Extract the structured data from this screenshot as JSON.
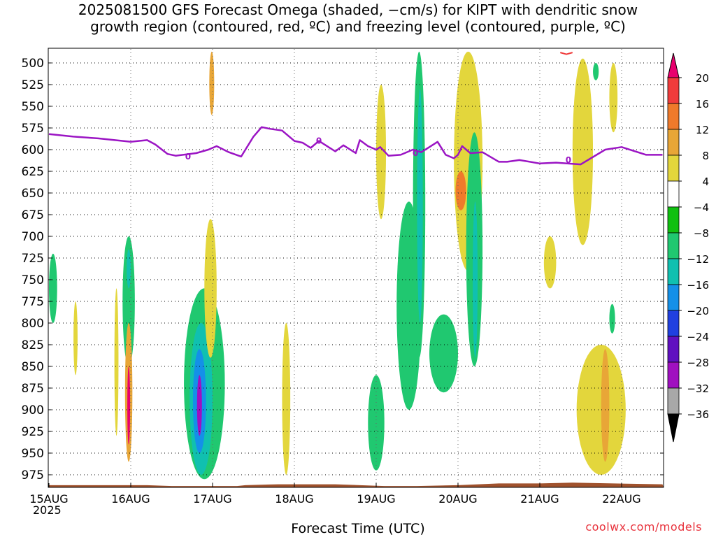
{
  "title_line1": "2025081500 GFS Forecast Omega (shaded, −cm/s) for KIPT with dendritic snow",
  "title_line2": "growth region (contoured, red, ºC) and freezing level (contoured, purple, ºC)",
  "credit": "coolwx.com/models",
  "chart_data": {
    "type": "heatmap",
    "title": "2025081500 GFS Forecast Omega (shaded, −cm/s) for KIPT with dendritic snow growth region (contoured, red, ºC) and freezing level (contoured, purple, ºC)",
    "xlabel": "Forecast Time (UTC)",
    "x_year_label": "2025",
    "x_ticks": [
      "15AUG",
      "16AUG",
      "17AUG",
      "18AUG",
      "19AUG",
      "20AUG",
      "21AUG",
      "22AUG"
    ],
    "x_range_days": [
      0,
      7.5
    ],
    "y_ticks": [
      500,
      525,
      550,
      575,
      600,
      625,
      650,
      675,
      700,
      725,
      750,
      775,
      800,
      825,
      850,
      875,
      900,
      925,
      950,
      975
    ],
    "y_range_hpa": [
      487,
      988
    ],
    "grid": "dotted",
    "colorbar": {
      "labels": [
        "20",
        "16",
        "12",
        "8",
        "4",
        "−4",
        "−8",
        "−12",
        "−16",
        "−20",
        "−24",
        "−28",
        "−32",
        "−36"
      ],
      "colors": [
        "#e8006e",
        "#f03c3c",
        "#ef7a2b",
        "#e8a637",
        "#e3d63c",
        "#ffffff",
        "#10c010",
        "#20c870",
        "#10c0b0",
        "#1490e8",
        "#2040e0",
        "#6010c0",
        "#a010c0",
        "#a8a8a8",
        "#000000"
      ]
    },
    "freezing_level": {
      "color": "#9b15c4",
      "contour_label": "0",
      "x_days": [
        0,
        0.3,
        0.6,
        1.0,
        1.2,
        1.3,
        1.45,
        1.55,
        1.8,
        1.95,
        2.05,
        2.2,
        2.35,
        2.5,
        2.6,
        2.7,
        2.85,
        3.0,
        3.1,
        3.2,
        3.3,
        3.5,
        3.6,
        3.75,
        3.8,
        3.9,
        4.0,
        4.05,
        4.15,
        4.3,
        4.45,
        4.55,
        4.65,
        4.75,
        4.85,
        4.95,
        5.0,
        5.05,
        5.15,
        5.3,
        5.5,
        5.6,
        5.75,
        6.0,
        6.2,
        6.5,
        6.8,
        7.0,
        7.3,
        7.5
      ],
      "pressure_hpa": [
        582,
        585,
        587,
        591,
        589,
        594,
        605,
        607,
        604,
        600,
        596,
        603,
        608,
        585,
        574,
        576,
        578,
        590,
        592,
        598,
        590,
        602,
        595,
        604,
        589,
        596,
        600,
        597,
        607,
        606,
        600,
        603,
        597,
        591,
        606,
        610,
        606,
        596,
        604,
        603,
        614,
        614,
        612,
        616,
        615,
        617,
        600,
        597,
        606,
        606
      ]
    },
    "dendritic_region": {
      "color": "#f03c3c",
      "x_days": [
        6.25,
        6.4
      ],
      "pressure_hpa": [
        488,
        490
      ]
    },
    "surface_color": "#a0522d",
    "omega_regions": [
      {
        "value": -8,
        "x_days": [
          0.0,
          0.1
        ],
        "pressure_hpa": [
          720,
          800
        ]
      },
      {
        "value": 6,
        "x_days": [
          0.3,
          0.35
        ],
        "pressure_hpa": [
          775,
          860
        ]
      },
      {
        "value": 6,
        "x_days": [
          0.8,
          0.85
        ],
        "pressure_hpa": [
          760,
          930
        ]
      },
      {
        "value": -8,
        "x_days": [
          0.9,
          1.05
        ],
        "pressure_hpa": [
          700,
          850
        ]
      },
      {
        "value": -14,
        "x_days": [
          0.95,
          1.0
        ],
        "pressure_hpa": [
          715,
          760
        ]
      },
      {
        "value": 8,
        "x_days": [
          0.93,
          1.02
        ],
        "pressure_hpa": [
          800,
          960
        ]
      },
      {
        "value": 20,
        "x_days": [
          0.96,
          0.99
        ],
        "pressure_hpa": [
          850,
          940
        ]
      },
      {
        "value": -8,
        "x_days": [
          1.65,
          2.15
        ],
        "pressure_hpa": [
          760,
          980
        ]
      },
      {
        "value": -14,
        "x_days": [
          1.72,
          2.0
        ],
        "pressure_hpa": [
          800,
          975
        ]
      },
      {
        "value": -18,
        "x_days": [
          1.76,
          1.92
        ],
        "pressure_hpa": [
          830,
          950
        ]
      },
      {
        "value": -28,
        "x_days": [
          1.81,
          1.87
        ],
        "pressure_hpa": [
          860,
          930
        ]
      },
      {
        "value": 10,
        "x_days": [
          1.96,
          2.02
        ],
        "pressure_hpa": [
          487,
          560
        ]
      },
      {
        "value": 6,
        "x_days": [
          1.9,
          2.05
        ],
        "pressure_hpa": [
          680,
          840
        ]
      },
      {
        "value": 6,
        "x_days": [
          2.85,
          2.95
        ],
        "pressure_hpa": [
          800,
          975
        ]
      },
      {
        "value": -8,
        "x_days": [
          3.9,
          4.1
        ],
        "pressure_hpa": [
          860,
          970
        ]
      },
      {
        "value": 6,
        "x_days": [
          4.0,
          4.12
        ],
        "pressure_hpa": [
          525,
          680
        ]
      },
      {
        "value": -8,
        "x_days": [
          4.25,
          4.55
        ],
        "pressure_hpa": [
          660,
          900
        ]
      },
      {
        "value": -8,
        "x_days": [
          4.45,
          4.6
        ],
        "pressure_hpa": [
          487,
          840
        ]
      },
      {
        "value": -14,
        "x_days": [
          4.5,
          4.57
        ],
        "pressure_hpa": [
          530,
          800
        ]
      },
      {
        "value": -8,
        "x_days": [
          4.65,
          5.0
        ],
        "pressure_hpa": [
          790,
          880
        ]
      },
      {
        "value": 6,
        "x_days": [
          4.95,
          5.3
        ],
        "pressure_hpa": [
          487,
          740
        ]
      },
      {
        "value": 13,
        "x_days": [
          4.97,
          5.1
        ],
        "pressure_hpa": [
          625,
          670
        ]
      },
      {
        "value": -8,
        "x_days": [
          5.1,
          5.3
        ],
        "pressure_hpa": [
          580,
          850
        ]
      },
      {
        "value": -14,
        "x_days": [
          5.18,
          5.24
        ],
        "pressure_hpa": [
          660,
          840
        ]
      },
      {
        "value": 6,
        "x_days": [
          6.05,
          6.2
        ],
        "pressure_hpa": [
          700,
          760
        ]
      },
      {
        "value": 6,
        "x_days": [
          6.4,
          6.65
        ],
        "pressure_hpa": [
          495,
          710
        ]
      },
      {
        "value": -8,
        "x_days": [
          6.65,
          6.72
        ],
        "pressure_hpa": [
          500,
          520
        ]
      },
      {
        "value": 6,
        "x_days": [
          6.85,
          6.95
        ],
        "pressure_hpa": [
          500,
          580
        ]
      },
      {
        "value": -8,
        "x_days": [
          6.85,
          6.92
        ],
        "pressure_hpa": [
          778,
          812
        ]
      },
      {
        "value": 6,
        "x_days": [
          6.45,
          7.05
        ],
        "pressure_hpa": [
          825,
          975
        ]
      },
      {
        "value": 10,
        "x_days": [
          6.75,
          6.85
        ],
        "pressure_hpa": [
          830,
          960
        ]
      }
    ]
  }
}
